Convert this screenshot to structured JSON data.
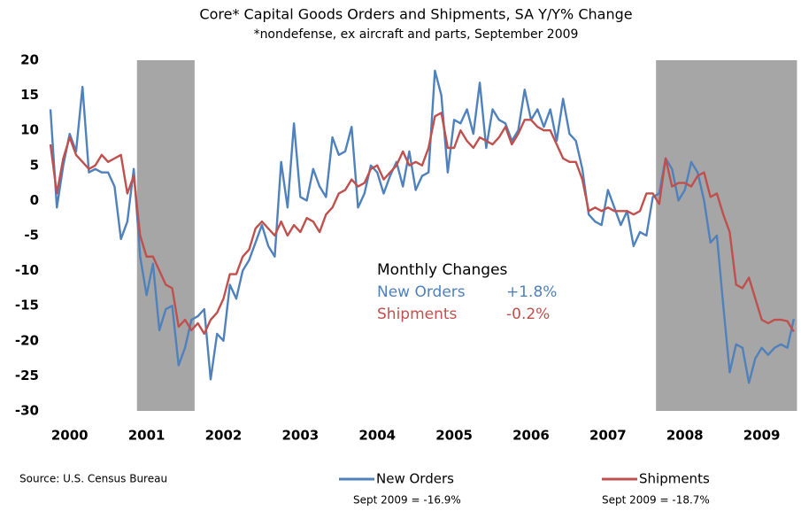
{
  "chart_data": {
    "type": "line",
    "title": "Core* Capital Goods Orders and Shipments, SA Y/Y% Change",
    "subtitle": "*nondefense, ex aircraft and parts, September 2009",
    "categories": [
      null,
      null,
      null,
      "2000",
      null,
      null,
      null,
      null,
      null,
      null,
      null,
      null,
      null,
      null,
      null,
      "2001",
      null,
      null,
      null,
      null,
      null,
      null,
      null,
      null,
      null,
      null,
      null,
      "2002",
      null,
      null,
      null,
      null,
      null,
      null,
      null,
      null,
      null,
      null,
      null,
      "2003",
      null,
      null,
      null,
      null,
      null,
      null,
      null,
      null,
      null,
      null,
      null,
      "2004",
      null,
      null,
      null,
      null,
      null,
      null,
      null,
      null,
      null,
      null,
      null,
      "2005",
      null,
      null,
      null,
      null,
      null,
      null,
      null,
      null,
      null,
      null,
      null,
      "2006",
      null,
      null,
      null,
      null,
      null,
      null,
      null,
      null,
      null,
      null,
      null,
      "2007",
      null,
      null,
      null,
      null,
      null,
      null,
      null,
      null,
      null,
      null,
      null,
      "2008",
      null,
      null,
      null,
      null,
      null,
      null,
      null,
      null,
      null,
      null,
      null,
      "2009",
      null,
      null,
      null,
      null,
      null
    ],
    "series": [
      {
        "name": "New Orders",
        "color": "#4f81bd",
        "note": "Sept 2009 = -16.9%",
        "values": [
          13,
          -1,
          5,
          9.5,
          7,
          16.2,
          4,
          4.5,
          4,
          4,
          2,
          -5.5,
          -3,
          4.5,
          -8,
          -13.5,
          -9,
          -18.5,
          -15.5,
          -15,
          -23.5,
          -21,
          -17,
          -16.5,
          -15.5,
          -25.5,
          -19,
          -20,
          -12,
          -14,
          -10,
          -8.5,
          -6,
          -3.5,
          -6.5,
          -8,
          5.5,
          -1,
          11,
          0.5,
          0,
          4.5,
          2,
          0.5,
          9,
          6.5,
          7,
          10.5,
          -1,
          1,
          5,
          4,
          1,
          3.5,
          5.5,
          2,
          7,
          1.5,
          3.5,
          4,
          18.5,
          15,
          4,
          11.5,
          11,
          13,
          9.5,
          16.8,
          7.5,
          13,
          11.5,
          11,
          8.5,
          10,
          15.8,
          11.5,
          13,
          10.5,
          13,
          8.5,
          14.5,
          9.5,
          8.5,
          4.5,
          -2,
          -3,
          -3.5,
          1.5,
          -1,
          -3.5,
          -1.5,
          -6.5,
          -4.5,
          -5,
          0.5,
          1,
          6,
          4.5,
          0,
          1.5,
          5.5,
          4,
          0,
          -6,
          -5,
          -15,
          -24.5,
          -20.5,
          -21,
          -26,
          -22.5,
          -21,
          -22,
          -21,
          -20.5,
          -21,
          -16.9
        ]
      },
      {
        "name": "Shipments",
        "color": "#c0504d",
        "note": "Sept 2009 = -18.7%",
        "values": [
          8,
          1,
          6,
          9,
          6.5,
          5.5,
          4.5,
          5,
          6.5,
          5.5,
          6,
          6.5,
          1,
          3.5,
          -5,
          -8,
          -8,
          -10,
          -12,
          -12.5,
          -18,
          -17,
          -18.5,
          -17.5,
          -19,
          -17,
          -16,
          -14,
          -10.5,
          -10.5,
          -8,
          -7,
          -4,
          -3,
          -4,
          -5,
          -3,
          -5,
          -3.5,
          -4.5,
          -2.5,
          -3,
          -4.5,
          -2,
          -1,
          1,
          1.5,
          3,
          2,
          2.5,
          4.5,
          5,
          3,
          4,
          5,
          7,
          5,
          5.5,
          5,
          7.5,
          12,
          12.5,
          7.5,
          7.5,
          10,
          8.5,
          7.5,
          9,
          8.5,
          8,
          9,
          10.5,
          8,
          9.5,
          11.5,
          11.5,
          10.5,
          10,
          10,
          8,
          6,
          5.5,
          5.5,
          3,
          -1.5,
          -1,
          -1.5,
          -1,
          -1.5,
          -1.5,
          -1.5,
          -2,
          -1.5,
          1,
          1,
          -0.5,
          6,
          2,
          2.5,
          2.5,
          2,
          3.5,
          4,
          0.5,
          1,
          -2,
          -4.5,
          -12,
          -12.5,
          -11,
          -14,
          -17,
          -17.5,
          -17,
          -17,
          -17.2,
          -18.7
        ]
      }
    ],
    "ylim": [
      -30,
      20
    ],
    "yticks": [
      -30,
      -25,
      -20,
      -15,
      -10,
      -5,
      0,
      5,
      10,
      15,
      20
    ],
    "shaded_periods": [
      [
        14,
        22
      ],
      [
        95,
        116
      ]
    ],
    "shade_color": "#a6a6a6",
    "annotation": {
      "title": "Monthly Changes",
      "rows": [
        [
          "New Orders",
          "+1.8%"
        ],
        [
          "Shipments",
          "-0.2%"
        ]
      ]
    },
    "source": "Source: U.S. Census Bureau"
  }
}
